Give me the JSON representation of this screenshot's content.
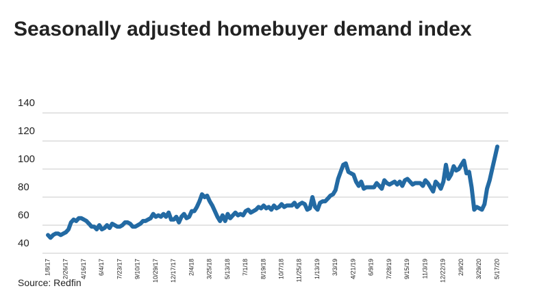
{
  "chart_data": {
    "type": "line",
    "title": "Seasonally adjusted homebuyer demand index",
    "source": "Source: Redfin",
    "categories": [
      "1/8/17",
      null,
      null,
      null,
      null,
      null,
      null,
      "2/26/17",
      null,
      null,
      null,
      null,
      null,
      null,
      "4/16/17",
      null,
      null,
      null,
      null,
      null,
      null,
      "6/4/17",
      null,
      null,
      null,
      null,
      null,
      null,
      "7/23/17",
      null,
      null,
      null,
      null,
      null,
      null,
      "9/10/17",
      null,
      null,
      null,
      null,
      null,
      null,
      "10/29/17",
      null,
      null,
      null,
      null,
      null,
      null,
      "12/17/17",
      null,
      null,
      null,
      null,
      null,
      null,
      "2/4/18",
      null,
      null,
      null,
      null,
      null,
      null,
      "3/25/18",
      null,
      null,
      null,
      null,
      null,
      null,
      "5/13/18",
      null,
      null,
      null,
      null,
      null,
      null,
      "7/1/18",
      null,
      null,
      null,
      null,
      null,
      null,
      "8/19/18",
      null,
      null,
      null,
      null,
      null,
      null,
      "10/7/18",
      null,
      null,
      null,
      null,
      null,
      null,
      "11/25/18",
      null,
      null,
      null,
      null,
      null,
      null,
      "1/13/19",
      null,
      null,
      null,
      null,
      null,
      null,
      "3/3/19",
      null,
      null,
      null,
      null,
      null,
      null,
      "4/21/19",
      null,
      null,
      null,
      null,
      null,
      null,
      "6/9/19",
      null,
      null,
      null,
      null,
      null,
      null,
      "7/28/19",
      null,
      null,
      null,
      null,
      null,
      null,
      "9/15/19",
      null,
      null,
      null,
      null,
      null,
      null,
      "11/3/19",
      null,
      null,
      null,
      null,
      null,
      null,
      "12/22/19",
      null,
      null,
      null,
      null,
      null,
      null,
      "2/9/20",
      null,
      null,
      null,
      null,
      null,
      null,
      "3/29/20",
      null,
      null,
      null,
      null,
      null,
      null,
      "5/17/20"
    ],
    "values": [
      53,
      51,
      53,
      54,
      54,
      53,
      54,
      55,
      57,
      62,
      64,
      63,
      65,
      65,
      64,
      63,
      61,
      59,
      59,
      57,
      60,
      57,
      58,
      60,
      58,
      61,
      60,
      59,
      59,
      60,
      62,
      62,
      61,
      59,
      59,
      60,
      61,
      63,
      63,
      64,
      65,
      68,
      66,
      67,
      66,
      68,
      66,
      69,
      64,
      64,
      66,
      62,
      66,
      68,
      65,
      66,
      70,
      70,
      73,
      77,
      82,
      80,
      81,
      77,
      74,
      70,
      66,
      63,
      67,
      63,
      68,
      65,
      67,
      69,
      67,
      68,
      67,
      70,
      71,
      69,
      70,
      71,
      73,
      72,
      74,
      72,
      73,
      71,
      74,
      72,
      73,
      75,
      73,
      74,
      74,
      74,
      76,
      73,
      75,
      76,
      75,
      71,
      72,
      80,
      73,
      71,
      76,
      77,
      77,
      79,
      81,
      82,
      85,
      93,
      98,
      103,
      104,
      98,
      97,
      96,
      91,
      88,
      91,
      86,
      87,
      87,
      87,
      87,
      90,
      88,
      86,
      92,
      90,
      89,
      90,
      91,
      89,
      91,
      88,
      92,
      93,
      91,
      89,
      90,
      90,
      90,
      88,
      92,
      90,
      87,
      84,
      91,
      89,
      86,
      91,
      103,
      93,
      96,
      102,
      99,
      100,
      103,
      106,
      97,
      98,
      87,
      71,
      73,
      72,
      71,
      75,
      86,
      92,
      100,
      108,
      116
    ],
    "color": "#236aa3",
    "ylim": [
      40,
      140
    ],
    "yticks": [
      40,
      60,
      80,
      100,
      120,
      140
    ],
    "grid": true
  }
}
